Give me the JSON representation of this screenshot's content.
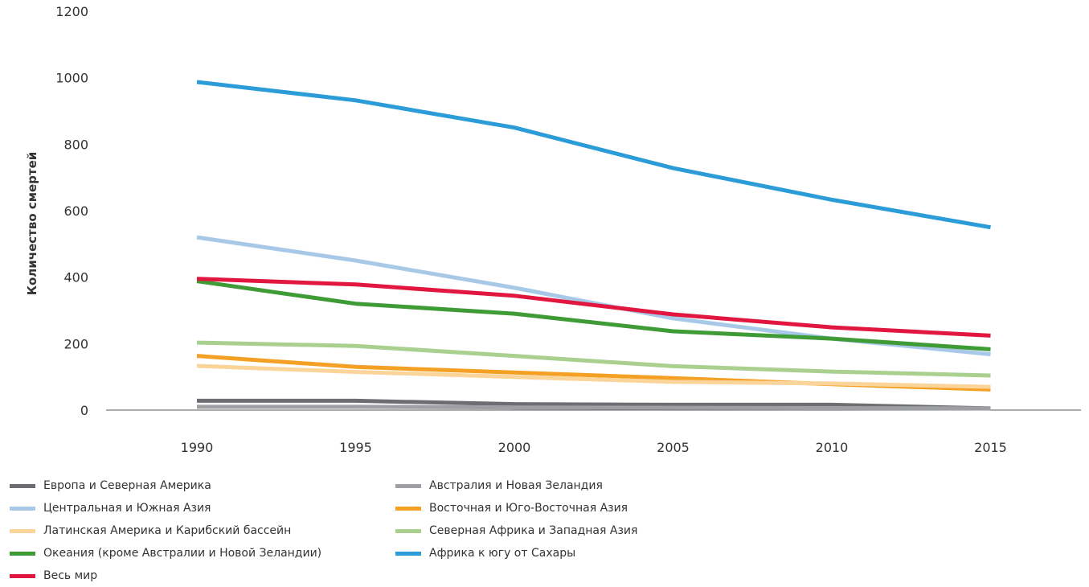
{
  "chart_data": {
    "type": "line",
    "title": "",
    "xlabel": "",
    "ylabel": "Количество смертей",
    "ylim": [
      0,
      1200
    ],
    "y_ticks": [
      0,
      200,
      400,
      600,
      800,
      1000,
      1200
    ],
    "x": [
      1990,
      1995,
      2000,
      2005,
      2010,
      2015
    ],
    "grid": false,
    "legend_position": "bottom",
    "series": [
      {
        "name": "Европа и Северная Америка",
        "color": "#6d6e71",
        "values": [
          28,
          28,
          18,
          16,
          16,
          5
        ]
      },
      {
        "name": "Австралия и Новая Зеландия",
        "color": "#9d9fa2",
        "values": [
          10,
          10,
          8,
          7,
          6,
          5
        ]
      },
      {
        "name": "Центральная и Южная Азия",
        "color": "#a8c8e8",
        "values": [
          520,
          450,
          368,
          276,
          215,
          168
        ]
      },
      {
        "name": "Восточная и Юго-Восточная Азия",
        "color": "#f4a024",
        "values": [
          163,
          130,
          113,
          96,
          78,
          62
        ]
      },
      {
        "name": "Латинская Америка и Карибский бассейн",
        "color": "#fbd49a",
        "values": [
          133,
          115,
          100,
          85,
          80,
          70
        ]
      },
      {
        "name": "Северная Африка и Западная Азия",
        "color": "#a9d08e",
        "values": [
          203,
          193,
          163,
          132,
          116,
          104
        ]
      },
      {
        "name": "Океания (кроме Австралии и Новой Зеландии)",
        "color": "#3f9b35",
        "values": [
          388,
          320,
          290,
          237,
          215,
          183
        ]
      },
      {
        "name": "Африка к югу от Сахары",
        "color": "#2b9cd8",
        "values": [
          987,
          932,
          850,
          728,
          633,
          550
        ]
      },
      {
        "name": "Весь мир",
        "color": "#e1173f",
        "values": [
          395,
          378,
          344,
          288,
          249,
          224
        ]
      }
    ]
  }
}
